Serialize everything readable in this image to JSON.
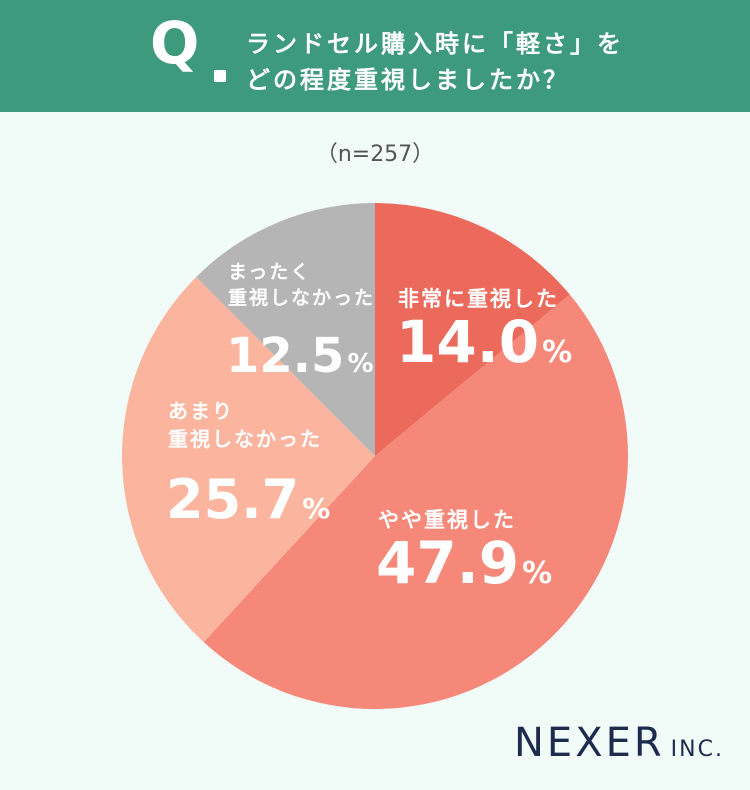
{
  "header": {
    "q_letter": "Q",
    "question_line1": "ランドセル購入時に「軽さ」を",
    "question_line2": "どの程度重視しましたか？"
  },
  "sample_size": "（n=257）",
  "chart_data": {
    "type": "pie",
    "title": "ランドセル購入時に「軽さ」をどの程度重視しましたか？",
    "n": 257,
    "slices": [
      {
        "label": "非常に重視した",
        "label_lines": [
          "非常に重視した"
        ],
        "value": 14.0,
        "value_text": "14.0",
        "color": "#ec6a5c"
      },
      {
        "label": "やや重視した",
        "label_lines": [
          "やや重視した"
        ],
        "value": 47.9,
        "value_text": "47.9",
        "color": "#f58878"
      },
      {
        "label": "あまり重視しなかった",
        "label_lines": [
          "あまり",
          "重視しなかった"
        ],
        "value": 25.7,
        "value_text": "25.7",
        "color": "#fbb49e"
      },
      {
        "label": "まったく重視しなかった",
        "label_lines": [
          "まったく",
          "重視しなかった"
        ],
        "value": 12.5,
        "value_text": "12.5",
        "color": "#b5b5b5"
      }
    ],
    "unit": "%"
  },
  "logo": {
    "main": "NEXER",
    "sub": "INC."
  }
}
